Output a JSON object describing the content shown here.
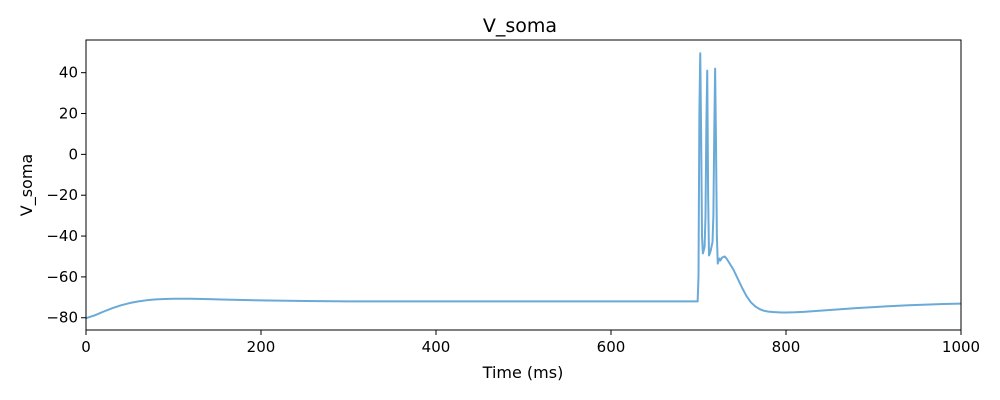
{
  "chart_data": {
    "type": "line",
    "title": "V_soma",
    "xlabel": "Time (ms)",
    "ylabel": "V_soma",
    "xlim": [
      0,
      1000
    ],
    "ylim": [
      -86,
      56
    ],
    "xticks": [
      0,
      200,
      400,
      600,
      800,
      1000
    ],
    "yticks": [
      -80,
      -60,
      -40,
      -20,
      0,
      20,
      40
    ],
    "xtick_labels": [
      "0",
      "200",
      "400",
      "600",
      "800",
      "1000"
    ],
    "ytick_labels": [
      "−80",
      "−60",
      "−40",
      "−20",
      "0",
      "20",
      "40"
    ],
    "grid": false,
    "legend": "none",
    "line_color": "#6aaad8",
    "series": [
      {
        "x": [
          0,
          10,
          20,
          30,
          40,
          50,
          60,
          70,
          80,
          90,
          100,
          110,
          120,
          140,
          160,
          180,
          200,
          250,
          300,
          350,
          400,
          450,
          500,
          550,
          600,
          650,
          699,
          700,
          701,
          702,
          703,
          704,
          705,
          706,
          707,
          708,
          709,
          710,
          711,
          712,
          713,
          714,
          715,
          716,
          717,
          718,
          719,
          720,
          721,
          722,
          723,
          724,
          725,
          727,
          730,
          732,
          735,
          740,
          745,
          750,
          755,
          760,
          765,
          770,
          775,
          780,
          785,
          790,
          795,
          800,
          810,
          820,
          830,
          840,
          850,
          860,
          880,
          900,
          920,
          940,
          960,
          980,
          1000
        ],
        "y": [
          -80.2,
          -78.8,
          -77.0,
          -75.3,
          -73.9,
          -72.8,
          -72.0,
          -71.4,
          -71.0,
          -70.8,
          -70.7,
          -70.7,
          -70.7,
          -70.9,
          -71.1,
          -71.3,
          -71.5,
          -71.8,
          -72.0,
          -72.0,
          -72.0,
          -72.0,
          -72.0,
          -72.0,
          -72.0,
          -72.0,
          -72.0,
          -60,
          20,
          49.5,
          10,
          -40,
          -48.5,
          -47,
          -45,
          -30,
          15,
          41,
          -20,
          -49.5,
          -48.5,
          -47,
          -45,
          -43,
          -30,
          10,
          42,
          5,
          -40,
          -53.5,
          -52,
          -51,
          -52,
          -50.5,
          -50.0,
          -51,
          -53,
          -56.5,
          -61,
          -65.5,
          -69.5,
          -72.5,
          -74.5,
          -75.8,
          -76.6,
          -77.0,
          -77.2,
          -77.3,
          -77.4,
          -77.4,
          -77.3,
          -77.1,
          -76.8,
          -76.5,
          -76.2,
          -75.9,
          -75.3,
          -74.8,
          -74.3,
          -73.9,
          -73.6,
          -73.3,
          -73.1
        ]
      }
    ]
  }
}
